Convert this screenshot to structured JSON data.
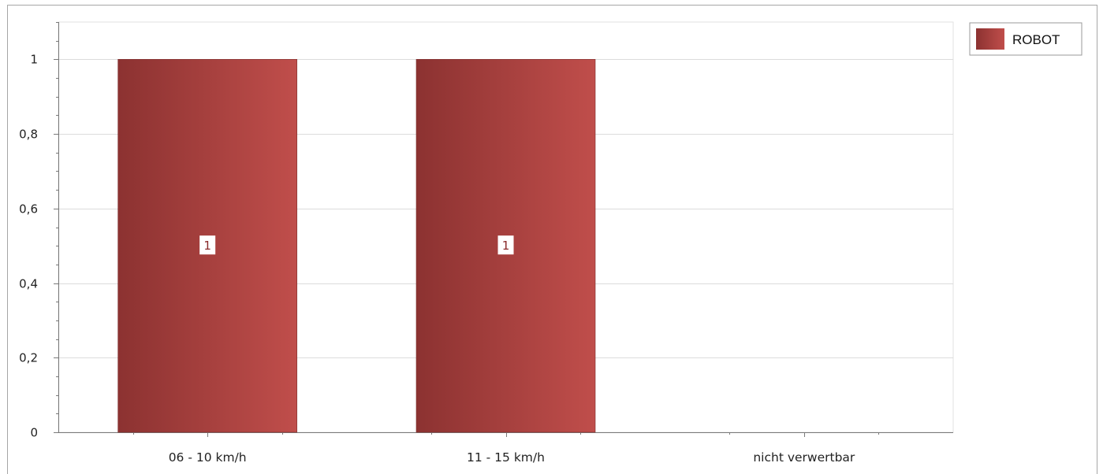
{
  "chart_data": {
    "type": "bar",
    "categories": [
      "06 - 10 km/h",
      "11 - 15 km/h",
      "nicht verwertbar"
    ],
    "series": [
      {
        "name": "ROBOT",
        "values": [
          1,
          1,
          0
        ],
        "color": "#b44a46"
      }
    ],
    "data_labels": [
      "1",
      "1",
      ""
    ],
    "y_ticks": [
      "0",
      "0,2",
      "0,4",
      "0,6",
      "0,8",
      "1"
    ],
    "y_tick_values": [
      0,
      0.2,
      0.4,
      0.6,
      0.8,
      1
    ],
    "ylim": [
      0,
      1.1
    ],
    "grid": true,
    "legend_position": "top-right",
    "colors": {
      "bar_dark": "#8c3231",
      "bar_light": "#c04e4b",
      "grid": "#dcdcdc",
      "axis": "#7a7a7a"
    }
  }
}
